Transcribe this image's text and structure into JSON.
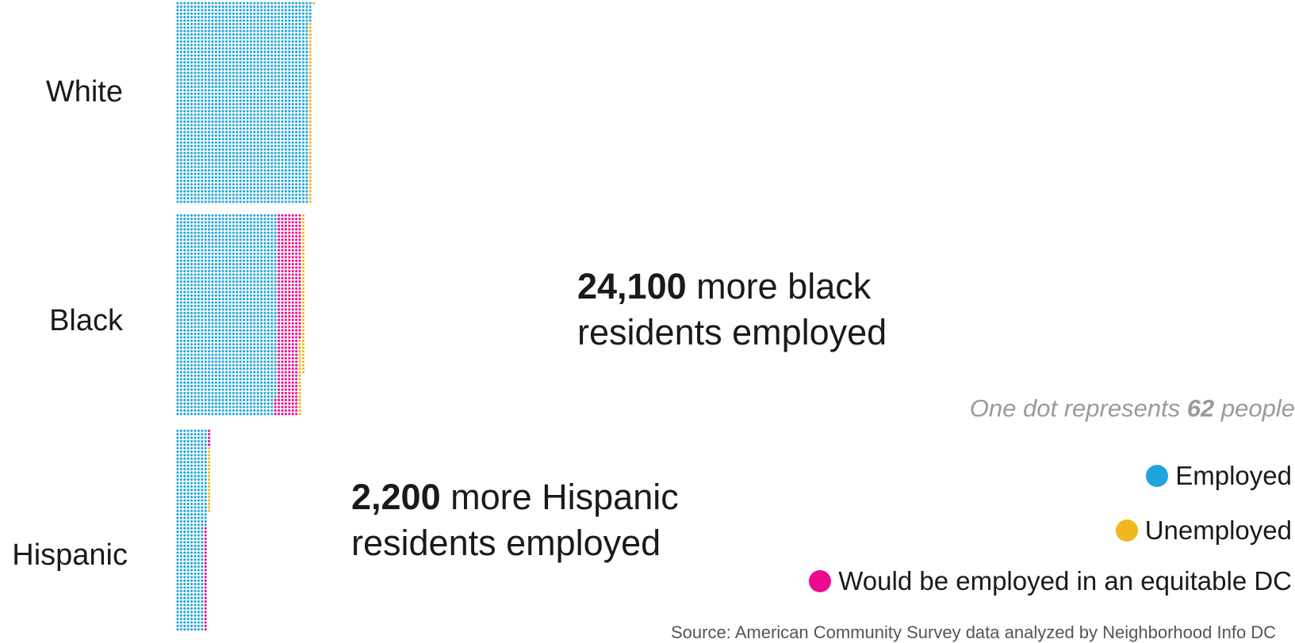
{
  "chart_data": {
    "type": "dot-matrix",
    "unit_note": {
      "prefix": "One dot represents ",
      "value": "62",
      "suffix": " people"
    },
    "categories": [
      "White",
      "Black",
      "Hispanic"
    ],
    "series": [
      {
        "name": "Employed",
        "values": [
          137000,
          104000,
          30500
        ]
      },
      {
        "name": "Would be employed in an equitable DC",
        "values": [
          0,
          24100,
          2200
        ]
      },
      {
        "name": "Unemployed",
        "values": [
          3300,
          4200,
          1200
        ]
      }
    ],
    "annotations": [
      {
        "category": "Black",
        "value": "24,100",
        "text": " more black residents employed"
      },
      {
        "category": "Hispanic",
        "value": "2,200",
        "text": " more Hispanic residents employed"
      }
    ],
    "source": "Source: American Community Survey data analyzed by Neighborhood Info DC"
  },
  "colors": {
    "Employed": "#1fa5dd",
    "Unemployed": "#f0b81e",
    "Would be employed in an equitable DC": "#ec0b8d"
  },
  "legend": [
    {
      "key": "employed",
      "label": "Employed"
    },
    {
      "key": "unemployed",
      "label": "Unemployed"
    },
    {
      "key": "equitable",
      "label": "Would be employed in an equitable DC"
    }
  ]
}
